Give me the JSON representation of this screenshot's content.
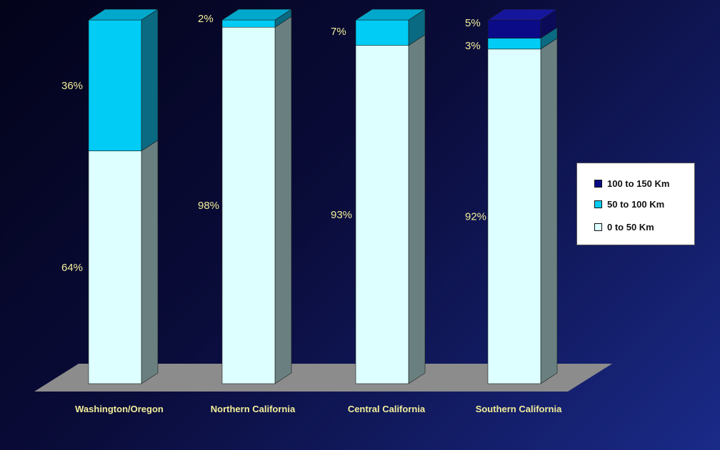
{
  "chart_data": {
    "type": "bar",
    "stacked": true,
    "percent": true,
    "categories": [
      "Washington/Oregon",
      "Northern California",
      "Central California",
      "Southern California"
    ],
    "series": [
      {
        "name": "0 to 50 Km",
        "color": "#ddffff",
        "values": [
          64,
          98,
          93,
          92
        ]
      },
      {
        "name": "50 to 100 Km",
        "color": "#00ccf5",
        "values": [
          36,
          2,
          7,
          3
        ]
      },
      {
        "name": "100 to 150 Km",
        "color": "#0b0b88",
        "values": [
          0,
          0,
          0,
          5
        ]
      }
    ],
    "data_labels": [
      [
        "64%",
        "98%",
        "93%",
        "92%"
      ],
      [
        "36%",
        "2%",
        "7%",
        "3%"
      ],
      [
        "",
        "",
        "",
        "5%"
      ]
    ],
    "ylim": [
      0,
      100
    ],
    "legend": {
      "position": "right",
      "order": [
        "100 to 150 Km",
        "50 to 100 Km",
        "0 to 50 Km"
      ]
    },
    "grid": false
  }
}
